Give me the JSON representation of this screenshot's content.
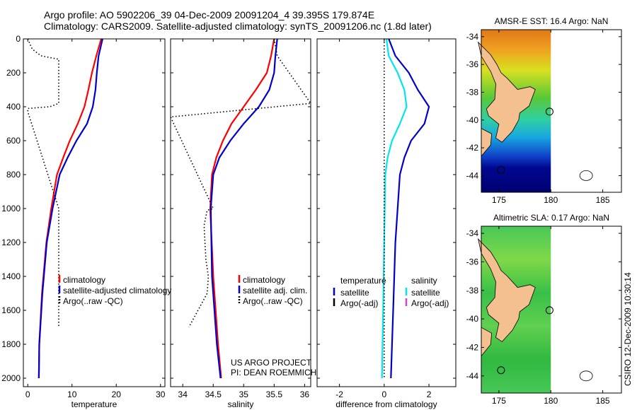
{
  "title_line1": "Argo profile: AO 5902206_39 04-Dec-2009 20091204_4 39.395S 179.874E",
  "title_line2": "Climatology: CARS2009. Satellite-adjusted climatology: synTS_20091206.nc (1.8d later)",
  "credit_line1": "US ARGO PROJECT",
  "credit_line2": "PI: DEAN ROEMMICH",
  "stamp": "CSIRO 12-Dec-2009 10:30:14",
  "chart_data": [
    {
      "type": "line",
      "xlabel": "temperature",
      "xlim": [
        -1,
        31
      ],
      "ylim": [
        2050,
        0
      ],
      "y_ticks": [
        0,
        200,
        400,
        600,
        800,
        1000,
        1200,
        1400,
        1600,
        1800,
        2000
      ],
      "x_ticks": [
        0,
        10,
        20,
        30
      ],
      "legend": [
        "climatology",
        "satellite-adjusted climatology",
        "Argo(..raw -QC)"
      ],
      "series": [
        {
          "name": "climatology",
          "color": "#ff0000",
          "style": "solid",
          "x": [
            16.6,
            15.5,
            14.5,
            13.7,
            12.8,
            11.3,
            9.5,
            8.0,
            6.6,
            5.3,
            4.2,
            3.2,
            2.6,
            2.5
          ],
          "y": [
            0,
            100,
            200,
            300,
            400,
            500,
            600,
            700,
            800,
            1000,
            1200,
            1500,
            1800,
            2000
          ]
        },
        {
          "name": "satellite-adjusted climatology",
          "color": "#0000cc",
          "style": "solid",
          "x": [
            16.9,
            16.0,
            15.6,
            15.3,
            14.7,
            13.4,
            11.0,
            9.0,
            7.2,
            5.6,
            4.3,
            3.3,
            2.6,
            2.5
          ],
          "y": [
            0,
            100,
            200,
            300,
            400,
            500,
            600,
            700,
            800,
            1000,
            1200,
            1500,
            1800,
            2000
          ]
        },
        {
          "name": "Argo(..raw -QC)",
          "color": "#000000",
          "style": "dotted",
          "x": [
            0,
            1,
            3,
            7,
            7,
            7,
            7,
            5,
            0,
            0,
            7,
            7,
            7,
            7,
            7
          ],
          "y": [
            0,
            60,
            100,
            120,
            200,
            300,
            380,
            400,
            410,
            430,
            1000,
            1200,
            1400,
            1600,
            1700
          ]
        }
      ]
    },
    {
      "type": "line",
      "xlabel": "salinity",
      "xlim": [
        33.8,
        36.1
      ],
      "ylim": [
        2050,
        0
      ],
      "x_ticks": [
        34,
        34.5,
        35,
        35.5,
        36
      ],
      "x_tick_labels": [
        "34",
        "34.5",
        "35",
        "35.5",
        "36"
      ],
      "legend": [
        "climatology",
        "satellite adj. clim.",
        "Argo(..raw -QC)"
      ],
      "series": [
        {
          "name": "climatology",
          "color": "#ff0000",
          "style": "solid",
          "x": [
            35.5,
            35.45,
            35.38,
            35.2,
            35.0,
            34.8,
            34.66,
            34.55,
            34.48,
            34.45,
            34.5,
            34.58,
            34.63
          ],
          "y": [
            0,
            100,
            200,
            300,
            400,
            500,
            600,
            700,
            800,
            1000,
            1400,
            1800,
            2000
          ]
        },
        {
          "name": "satellite adj. clim.",
          "color": "#0000cc",
          "style": "solid",
          "x": [
            35.55,
            35.52,
            35.5,
            35.42,
            35.25,
            35.0,
            34.78,
            34.6,
            34.5,
            34.46,
            34.48,
            34.56,
            34.62
          ],
          "y": [
            0,
            100,
            200,
            300,
            400,
            500,
            600,
            700,
            800,
            1000,
            1400,
            1800,
            2000
          ]
        },
        {
          "name": "Argo(..raw -QC)",
          "color": "#000000",
          "style": "dotted",
          "x": [
            35.5,
            35.55,
            36.1,
            33.8,
            34.5,
            34.4,
            34.35,
            34.38,
            34.42,
            34.4,
            34.1
          ],
          "y": [
            0,
            100,
            380,
            460,
            1000,
            1010,
            1100,
            1300,
            1400,
            1500,
            1700
          ]
        }
      ]
    },
    {
      "type": "line",
      "xlabel": "difference from climatology",
      "xlim": [
        -3,
        3.2
      ],
      "ylim": [
        2050,
        0
      ],
      "x_ticks": [
        -2,
        0,
        2
      ],
      "legend_left_title": "temperature",
      "legend_right_title": "salinity",
      "legend_left": [
        "satellite",
        "Argo(-adj)"
      ],
      "legend_right": [
        "satellite",
        "Argo(-adj)"
      ],
      "series": [
        {
          "name": "satellite (temperature)",
          "color": "#0000cc",
          "style": "solid",
          "x": [
            0.2,
            0.5,
            1.1,
            1.5,
            2.0,
            1.8,
            1.2,
            0.9,
            0.7,
            0.5,
            0.4,
            0.3
          ],
          "y": [
            0,
            100,
            200,
            300,
            400,
            500,
            600,
            700,
            800,
            1200,
            1600,
            2000
          ]
        },
        {
          "name": "satellite (salinity)",
          "color": "#00e5ee",
          "style": "solid",
          "x": [
            0.1,
            0.2,
            0.6,
            0.9,
            1.0,
            0.7,
            0.35,
            0.15,
            0.05,
            0.0,
            -0.05,
            -0.1
          ],
          "y": [
            0,
            100,
            200,
            300,
            400,
            500,
            600,
            700,
            800,
            1200,
            1600,
            2000
          ]
        },
        {
          "name": "zero line",
          "color": "#000000",
          "style": "dotted",
          "x": [
            0,
            0
          ],
          "y": [
            0,
            2000
          ]
        }
      ]
    },
    {
      "type": "heatmap",
      "title": "AMSR-E SST: 16.4 Argo: NaN",
      "x_ticks": [
        175,
        180,
        185
      ],
      "y_ticks": [
        -34,
        -36,
        -38,
        -40,
        -42,
        -44
      ],
      "xlim": [
        173.3,
        186.8
      ],
      "ylim": [
        -45.2,
        -33.5
      ]
    },
    {
      "type": "heatmap",
      "title": "Altimetric SLA: 0.17 Argo: NaN",
      "x_ticks": [
        175,
        180,
        185
      ],
      "y_ticks": [
        -34,
        -36,
        -38,
        -40,
        -42,
        -44
      ],
      "xlim": [
        173.3,
        186.8
      ],
      "ylim": [
        -45.2,
        -33.5
      ]
    }
  ]
}
